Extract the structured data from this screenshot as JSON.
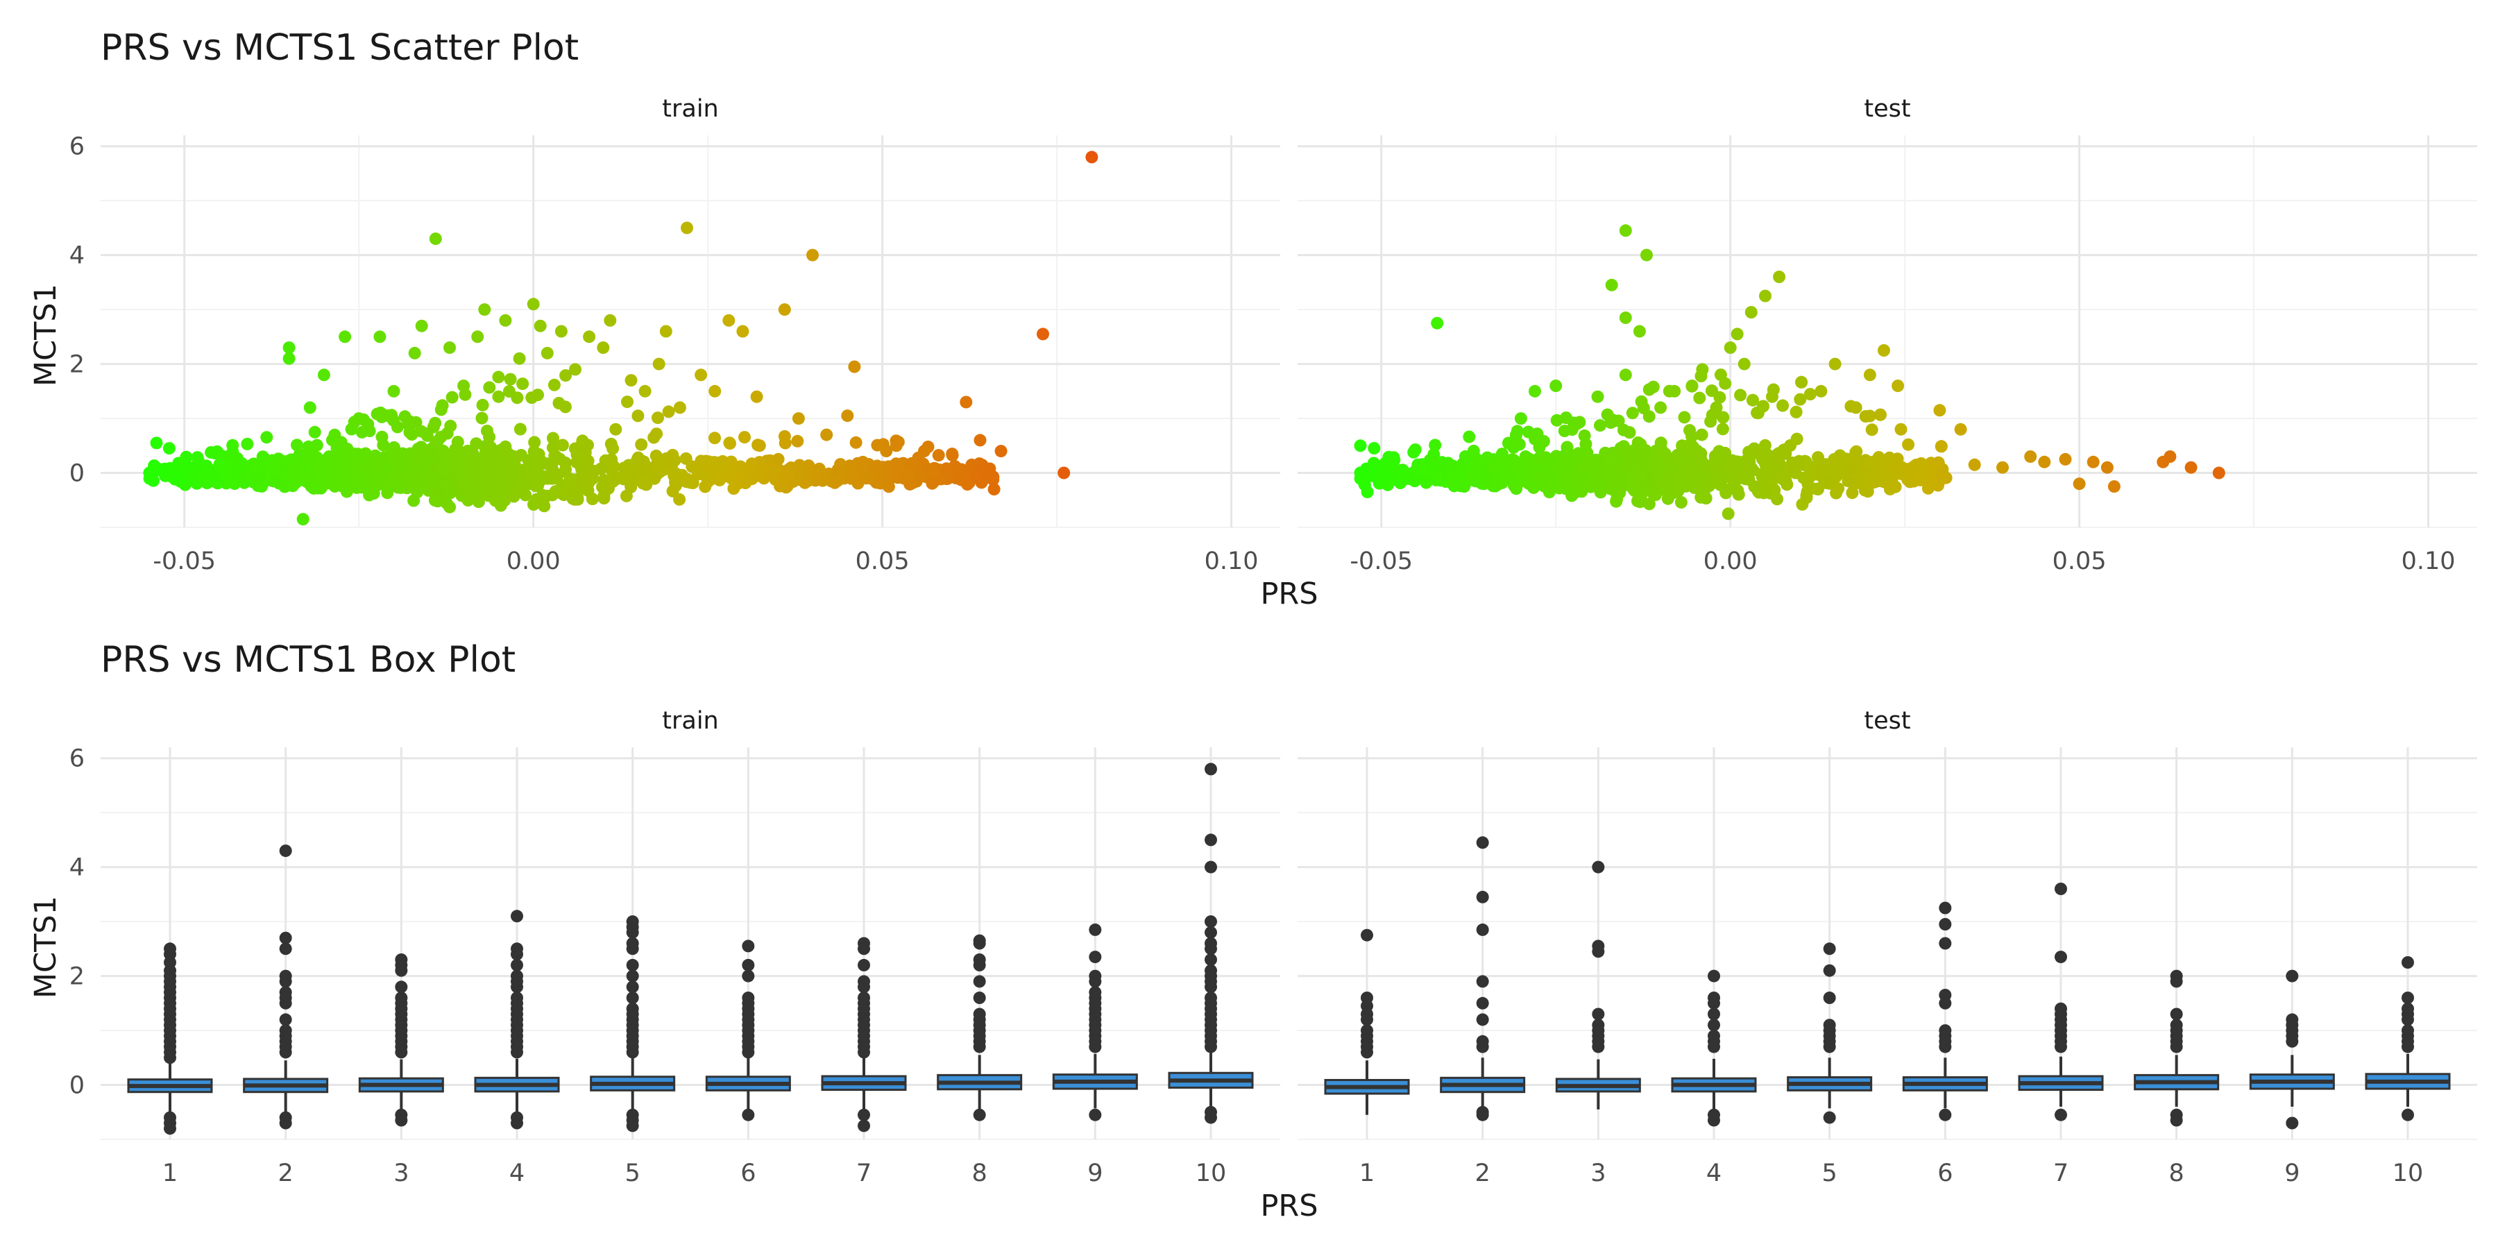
{
  "chart_data": [
    {
      "type": "scatter",
      "title": "PRS vs MCTS1 Scatter Plot",
      "xlabel": "PRS",
      "ylabel": "MCTS1",
      "xlim": [
        -0.062,
        0.107
      ],
      "ylim": [
        -1.0,
        6.2
      ],
      "xticks": [
        -0.05,
        0.0,
        0.05,
        0.1
      ],
      "xtick_labels": [
        "-0.05",
        "0.00",
        "0.05",
        "0.10"
      ],
      "yticks": [
        0,
        2,
        4,
        6
      ],
      "ytick_labels": [
        "0",
        "2",
        "4",
        "6"
      ],
      "grid": true,
      "legend": "none",
      "color_gradient": [
        "#22ff00",
        "#c8b000",
        "#e8560a"
      ],
      "color_gradient_domain": [
        -0.056,
        0.08
      ],
      "panels": [
        {
          "name": "train",
          "cloud": [
            -0.055,
            0.066,
            0.0
          ],
          "points": [
            [
              -0.054,
              0.55
            ],
            [
              -0.035,
              2.3
            ],
            [
              -0.035,
              2.1
            ],
            [
              -0.032,
              1.2
            ],
            [
              -0.03,
              1.8
            ],
            [
              -0.027,
              2.5
            ],
            [
              -0.025,
              1.0
            ],
            [
              -0.022,
              2.5
            ],
            [
              -0.02,
              1.5
            ],
            [
              -0.017,
              2.2
            ],
            [
              -0.016,
              2.7
            ],
            [
              -0.014,
              4.3
            ],
            [
              -0.012,
              2.3
            ],
            [
              -0.01,
              1.6
            ],
            [
              -0.008,
              2.5
            ],
            [
              -0.007,
              3.0
            ],
            [
              -0.005,
              1.4
            ],
            [
              -0.004,
              2.8
            ],
            [
              -0.002,
              2.1
            ],
            [
              0.0,
              3.1
            ],
            [
              0.001,
              2.7
            ],
            [
              0.002,
              2.2
            ],
            [
              0.004,
              2.6
            ],
            [
              0.006,
              1.9
            ],
            [
              0.008,
              2.5
            ],
            [
              0.01,
              2.3
            ],
            [
              0.011,
              2.8
            ],
            [
              0.014,
              1.7
            ],
            [
              0.016,
              1.5
            ],
            [
              0.018,
              2.0
            ],
            [
              0.019,
              2.6
            ],
            [
              0.021,
              1.2
            ],
            [
              0.022,
              4.5
            ],
            [
              0.024,
              1.8
            ],
            [
              0.026,
              1.5
            ],
            [
              0.028,
              2.8
            ],
            [
              0.03,
              2.6
            ],
            [
              0.032,
              1.4
            ],
            [
              0.036,
              3.0
            ],
            [
              0.038,
              1.0
            ],
            [
              0.04,
              4.0
            ],
            [
              0.042,
              0.7
            ],
            [
              0.045,
              1.05
            ],
            [
              0.046,
              1.95
            ],
            [
              0.052,
              0.5
            ],
            [
              0.056,
              0.4
            ],
            [
              0.06,
              0.35
            ],
            [
              0.062,
              1.3
            ],
            [
              0.064,
              0.6
            ],
            [
              0.065,
              0.0
            ],
            [
              0.066,
              -0.3
            ],
            [
              0.067,
              0.4
            ],
            [
              0.073,
              2.55
            ],
            [
              0.076,
              0.0
            ],
            [
              0.08,
              5.8
            ],
            [
              -0.033,
              -0.85
            ]
          ]
        },
        {
          "name": "test",
          "cloud": [
            -0.053,
            0.031,
            0.0
          ],
          "points": [
            [
              -0.053,
              0.5
            ],
            [
              -0.052,
              -0.35
            ],
            [
              -0.042,
              2.75
            ],
            [
              -0.03,
              1.0
            ],
            [
              -0.028,
              1.5
            ],
            [
              -0.025,
              1.6
            ],
            [
              -0.022,
              0.9
            ],
            [
              -0.019,
              1.4
            ],
            [
              -0.017,
              3.45
            ],
            [
              -0.015,
              4.45
            ],
            [
              -0.015,
              2.85
            ],
            [
              -0.014,
              1.1
            ],
            [
              -0.013,
              2.6
            ],
            [
              -0.012,
              4.0
            ],
            [
              -0.015,
              1.8
            ],
            [
              -0.01,
              1.2
            ],
            [
              -0.008,
              1.5
            ],
            [
              -0.004,
              1.9
            ],
            [
              -0.002,
              1.2
            ],
            [
              0.0,
              2.3
            ],
            [
              0.001,
              2.55
            ],
            [
              0.002,
              2.0
            ],
            [
              0.003,
              2.95
            ],
            [
              0.004,
              1.1
            ],
            [
              0.005,
              3.25
            ],
            [
              0.006,
              1.4
            ],
            [
              0.007,
              3.6
            ],
            [
              0.01,
              1.35
            ],
            [
              0.013,
              1.5
            ],
            [
              0.015,
              2.0
            ],
            [
              0.018,
              1.2
            ],
            [
              0.02,
              1.8
            ],
            [
              0.022,
              2.25
            ],
            [
              0.024,
              1.6
            ],
            [
              0.03,
              1.15
            ],
            [
              0.033,
              0.8
            ],
            [
              0.035,
              0.15
            ],
            [
              0.039,
              0.1
            ],
            [
              0.043,
              0.3
            ],
            [
              0.045,
              0.2
            ],
            [
              0.048,
              0.25
            ],
            [
              0.05,
              -0.2
            ],
            [
              0.052,
              0.2
            ],
            [
              0.054,
              0.1
            ],
            [
              0.055,
              -0.25
            ],
            [
              0.062,
              0.2
            ],
            [
              0.063,
              0.3
            ],
            [
              0.066,
              0.1
            ],
            [
              0.07,
              0.0
            ]
          ]
        }
      ]
    },
    {
      "type": "box",
      "title": "PRS vs MCTS1 Box Plot",
      "xlabel": "PRS",
      "ylabel": "MCTS1",
      "categories": [
        "1",
        "2",
        "3",
        "4",
        "5",
        "6",
        "7",
        "8",
        "9",
        "10"
      ],
      "ylim": [
        -1.0,
        6.2
      ],
      "yticks": [
        0,
        2,
        4,
        6
      ],
      "ytick_labels": [
        "0",
        "2",
        "4",
        "6"
      ],
      "grid": true,
      "legend": "none",
      "box_fill": "#3a8fd8",
      "box_stroke": "#333333",
      "panels": [
        {
          "name": "train",
          "boxes": [
            {
              "q1": -0.13,
              "median": -0.02,
              "q3": 0.1,
              "whisker_lo": -0.5,
              "whisker_hi": 0.42,
              "outliers": [
                2.5,
                2.4,
                2.25,
                2.1,
                2.0,
                1.9,
                1.8,
                1.7,
                1.6,
                1.5,
                1.4,
                1.3,
                1.2,
                1.1,
                1.0,
                0.9,
                0.8,
                0.7,
                0.6,
                0.5,
                -0.6,
                -0.7,
                -0.8
              ]
            },
            {
              "q1": -0.13,
              "median": -0.01,
              "q3": 0.11,
              "whisker_lo": -0.5,
              "whisker_hi": 0.45,
              "outliers": [
                4.3,
                2.7,
                2.5,
                2.0,
                1.9,
                1.7,
                1.6,
                1.5,
                1.2,
                1.0,
                0.9,
                0.8,
                0.7,
                0.6,
                -0.6,
                -0.7
              ]
            },
            {
              "q1": -0.12,
              "median": 0.0,
              "q3": 0.12,
              "whisker_lo": -0.48,
              "whisker_hi": 0.47,
              "outliers": [
                2.3,
                2.2,
                2.1,
                1.8,
                1.6,
                1.5,
                1.4,
                1.3,
                1.2,
                1.1,
                1.0,
                0.9,
                0.8,
                0.7,
                0.6,
                -0.55,
                -0.65
              ]
            },
            {
              "q1": -0.12,
              "median": 0.0,
              "q3": 0.13,
              "whisker_lo": -0.5,
              "whisker_hi": 0.48,
              "outliers": [
                3.1,
                2.5,
                2.4,
                2.2,
                2.0,
                1.9,
                1.8,
                1.6,
                1.5,
                1.4,
                1.3,
                1.2,
                1.1,
                1.0,
                0.9,
                0.8,
                0.7,
                0.6,
                -0.6,
                -0.7
              ]
            },
            {
              "q1": -0.1,
              "median": 0.02,
              "q3": 0.15,
              "whisker_lo": -0.47,
              "whisker_hi": 0.5,
              "outliers": [
                3.0,
                2.9,
                2.8,
                2.6,
                2.5,
                2.2,
                2.0,
                1.8,
                1.6,
                1.4,
                1.3,
                1.2,
                1.1,
                1.0,
                0.9,
                0.8,
                0.7,
                0.6,
                -0.55,
                -0.65,
                -0.75
              ]
            },
            {
              "q1": -0.1,
              "median": 0.02,
              "q3": 0.15,
              "whisker_lo": -0.47,
              "whisker_hi": 0.5,
              "outliers": [
                2.55,
                2.2,
                2.0,
                1.6,
                1.5,
                1.4,
                1.3,
                1.2,
                1.1,
                1.0,
                0.9,
                0.8,
                0.7,
                0.6,
                -0.55
              ]
            },
            {
              "q1": -0.09,
              "median": 0.03,
              "q3": 0.16,
              "whisker_lo": -0.45,
              "whisker_hi": 0.52,
              "outliers": [
                2.6,
                2.5,
                2.2,
                1.9,
                1.8,
                1.6,
                1.5,
                1.4,
                1.3,
                1.2,
                1.1,
                1.0,
                0.9,
                0.8,
                0.7,
                0.6,
                -0.55,
                -0.75
              ]
            },
            {
              "q1": -0.08,
              "median": 0.04,
              "q3": 0.18,
              "whisker_lo": -0.45,
              "whisker_hi": 0.55,
              "outliers": [
                2.65,
                2.6,
                2.3,
                2.2,
                1.9,
                1.6,
                1.3,
                1.2,
                1.1,
                1.0,
                0.9,
                0.8,
                0.7,
                -0.55
              ]
            },
            {
              "q1": -0.07,
              "median": 0.06,
              "q3": 0.19,
              "whisker_lo": -0.43,
              "whisker_hi": 0.57,
              "outliers": [
                2.85,
                2.35,
                2.0,
                1.9,
                1.7,
                1.6,
                1.5,
                1.4,
                1.3,
                1.2,
                1.1,
                1.0,
                0.9,
                0.8,
                0.7,
                -0.55
              ]
            },
            {
              "q1": -0.05,
              "median": 0.08,
              "q3": 0.22,
              "whisker_lo": -0.4,
              "whisker_hi": 0.6,
              "outliers": [
                5.8,
                4.5,
                4.0,
                3.0,
                2.8,
                2.6,
                2.5,
                2.3,
                2.1,
                2.0,
                1.9,
                1.8,
                1.6,
                1.5,
                1.4,
                1.3,
                1.2,
                1.1,
                1.0,
                0.9,
                0.8,
                0.7,
                -0.5,
                -0.6
              ]
            }
          ]
        },
        {
          "name": "test",
          "boxes": [
            {
              "q1": -0.16,
              "median": -0.04,
              "q3": 0.09,
              "whisker_lo": -0.55,
              "whisker_hi": 0.45,
              "outliers": [
                2.75,
                1.6,
                1.45,
                1.3,
                1.2,
                1.0,
                0.9,
                0.8,
                0.7,
                0.6
              ]
            },
            {
              "q1": -0.13,
              "median": 0.0,
              "q3": 0.13,
              "whisker_lo": -0.45,
              "whisker_hi": 0.5,
              "outliers": [
                4.45,
                3.45,
                2.85,
                1.9,
                1.5,
                1.2,
                0.8,
                0.7,
                -0.5,
                -0.55
              ]
            },
            {
              "q1": -0.12,
              "median": -0.02,
              "q3": 0.11,
              "whisker_lo": -0.45,
              "whisker_hi": 0.47,
              "outliers": [
                4.0,
                2.55,
                2.45,
                1.3,
                1.1,
                1.0,
                0.9,
                0.8,
                0.7
              ]
            },
            {
              "q1": -0.12,
              "median": 0.0,
              "q3": 0.12,
              "whisker_lo": -0.45,
              "whisker_hi": 0.48,
              "outliers": [
                2.0,
                1.6,
                1.5,
                1.3,
                1.1,
                0.9,
                0.8,
                0.7,
                -0.55,
                -0.65
              ]
            },
            {
              "q1": -0.1,
              "median": 0.02,
              "q3": 0.14,
              "whisker_lo": -0.43,
              "whisker_hi": 0.5,
              "outliers": [
                2.5,
                2.1,
                1.6,
                1.1,
                1.0,
                0.9,
                0.8,
                0.7,
                -0.6
              ]
            },
            {
              "q1": -0.1,
              "median": 0.02,
              "q3": 0.14,
              "whisker_lo": -0.43,
              "whisker_hi": 0.5,
              "outliers": [
                3.25,
                2.95,
                2.6,
                1.65,
                1.5,
                1.0,
                0.9,
                0.8,
                0.7,
                -0.55
              ]
            },
            {
              "q1": -0.09,
              "median": 0.03,
              "q3": 0.16,
              "whisker_lo": -0.4,
              "whisker_hi": 0.52,
              "outliers": [
                3.6,
                2.35,
                1.4,
                1.3,
                1.2,
                1.1,
                1.0,
                0.9,
                0.8,
                0.7,
                -0.55
              ]
            },
            {
              "q1": -0.08,
              "median": 0.05,
              "q3": 0.18,
              "whisker_lo": -0.4,
              "whisker_hi": 0.55,
              "outliers": [
                2.0,
                1.9,
                1.3,
                1.1,
                1.0,
                0.9,
                0.8,
                0.7,
                -0.55,
                -0.65
              ]
            },
            {
              "q1": -0.07,
              "median": 0.06,
              "q3": 0.19,
              "whisker_lo": -0.4,
              "whisker_hi": 0.55,
              "outliers": [
                2.0,
                1.2,
                1.1,
                1.0,
                0.9,
                0.8,
                -0.7
              ]
            },
            {
              "q1": -0.07,
              "median": 0.06,
              "q3": 0.2,
              "whisker_lo": -0.4,
              "whisker_hi": 0.57,
              "outliers": [
                2.25,
                1.6,
                1.4,
                1.3,
                1.2,
                1.0,
                0.9,
                0.8,
                0.7,
                -0.55
              ]
            }
          ]
        }
      ]
    }
  ]
}
